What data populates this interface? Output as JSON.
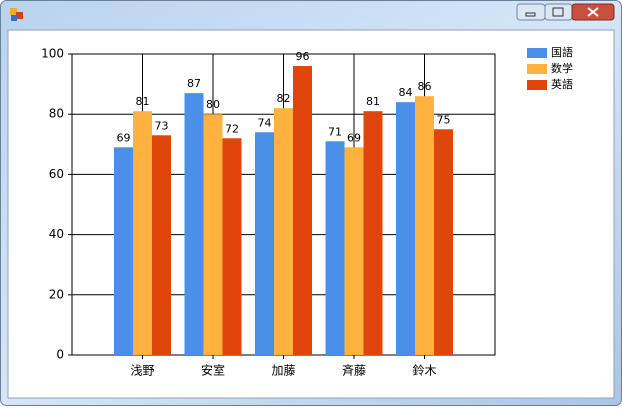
{
  "chart_data": {
    "type": "bar",
    "categories": [
      "浅野",
      "安室",
      "加藤",
      "斉藤",
      "鈴木"
    ],
    "series": [
      {
        "name": "国語",
        "color": "#4a8fe8",
        "values": [
          69,
          87,
          74,
          71,
          84
        ]
      },
      {
        "name": "数学",
        "color": "#ffb23f",
        "values": [
          81,
          80,
          82,
          69,
          86
        ]
      },
      {
        "name": "英語",
        "color": "#e0450c",
        "values": [
          73,
          72,
          96,
          81,
          75
        ]
      }
    ],
    "ylim": [
      0,
      100
    ],
    "yticks": [
      0,
      20,
      40,
      60,
      80,
      100
    ],
    "grid": true,
    "legend": "top-right"
  }
}
